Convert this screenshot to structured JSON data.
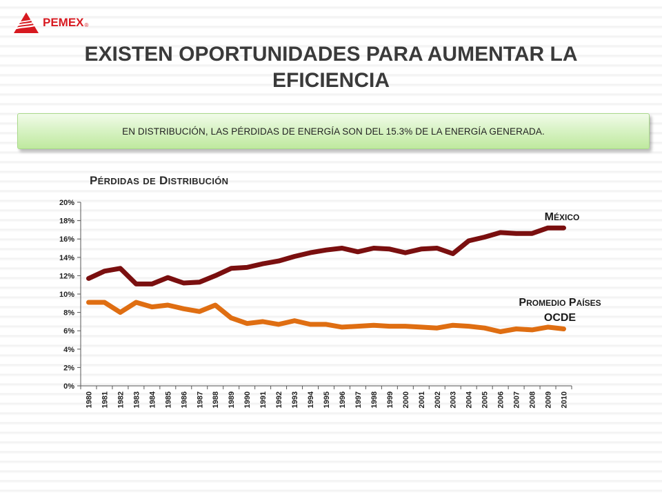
{
  "logo": {
    "text": "PEMEX",
    "reg": "®"
  },
  "slide": {
    "title": "EXISTEN OPORTUNIDADES PARA AUMENTAR LA EFICIENCIA",
    "banner": "EN DISTRIBUCIÓN, LAS PÉRDIDAS DE ENERGÍA SON DEL 15.3% DE LA ENERGÍA GENERADA."
  },
  "colors": {
    "mexico": "#7a0f0f",
    "ocde": "#df6e12",
    "logo": "#d71920",
    "axis": "#555555"
  },
  "chart_data": {
    "type": "line",
    "title": "Pérdidas de Distribución",
    "x": [
      "1980",
      "1981",
      "1982",
      "1983",
      "1984",
      "1985",
      "1986",
      "1987",
      "1988",
      "1989",
      "1990",
      "1991",
      "1992",
      "1993",
      "1994",
      "1995",
      "1996",
      "1997",
      "1998",
      "1999",
      "2000",
      "2001",
      "2002",
      "2003",
      "2004",
      "2005",
      "2006",
      "2007",
      "2008",
      "2009",
      "2010"
    ],
    "ylim": [
      0,
      20
    ],
    "yticks": [
      "0%",
      "2%",
      "4%",
      "6%",
      "8%",
      "10%",
      "12%",
      "14%",
      "16%",
      "18%",
      "20%"
    ],
    "ytick_step": 2,
    "grid": false,
    "series": [
      {
        "name": "México",
        "color": "#7a0f0f",
        "values": [
          11.7,
          12.5,
          12.8,
          11.1,
          11.1,
          11.8,
          11.2,
          11.3,
          12.0,
          12.8,
          12.9,
          13.3,
          13.6,
          14.1,
          14.5,
          14.8,
          15.0,
          14.6,
          15.0,
          14.9,
          14.5,
          14.9,
          15.0,
          14.4,
          15.8,
          16.2,
          16.7,
          16.6,
          16.6,
          17.2,
          17.2
        ]
      },
      {
        "name": "Promedio Países OCDE",
        "color": "#df6e12",
        "values": [
          9.1,
          9.1,
          8.0,
          9.1,
          8.6,
          8.8,
          8.4,
          8.1,
          8.8,
          7.4,
          6.8,
          7.0,
          6.7,
          7.1,
          6.7,
          6.7,
          6.4,
          6.5,
          6.6,
          6.5,
          6.5,
          6.4,
          6.3,
          6.6,
          6.5,
          6.3,
          5.9,
          6.2,
          6.1,
          6.4,
          6.2
        ]
      }
    ]
  }
}
